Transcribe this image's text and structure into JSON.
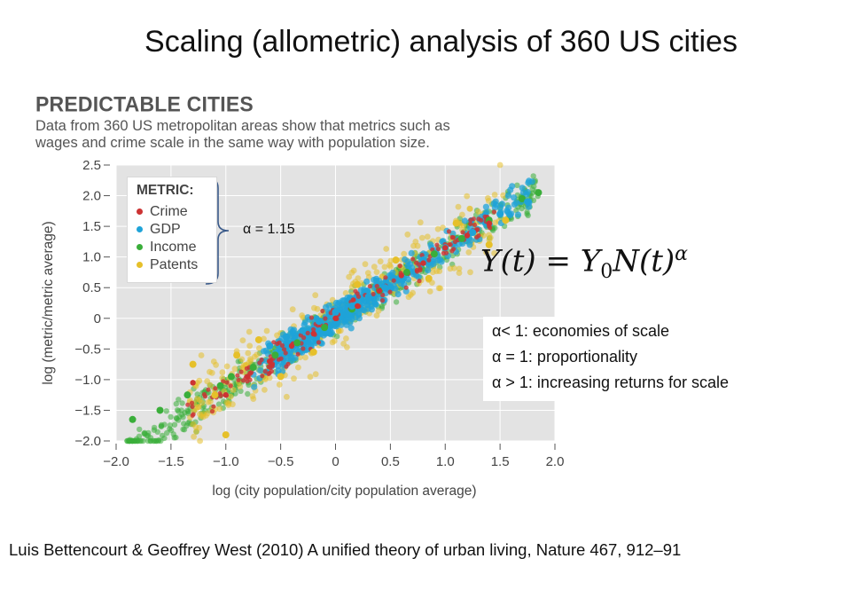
{
  "slide": {
    "title": "Scaling (allometric) analysis of 360 US cities",
    "citation": "Luis Bettencourt & Geoffrey West (2010) A unified theory of urban living, Nature 467, 912–91"
  },
  "annotations": {
    "bracket_label": "α = 1.15",
    "formula": {
      "lhs": "Y(t) = Y",
      "subscript": "0",
      "mid": "N(t)",
      "superscript": "α"
    },
    "regimes": [
      "α< 1: economies of scale",
      "α = 1: proportionality",
      "α > 1: increasing returns for scale"
    ]
  },
  "chart_data": {
    "type": "scatter",
    "title": "PREDICTABLE CITIES",
    "subtitle_lines": [
      "Data from 360 US metropolitan areas show that metrics such as",
      "wages and crime scale in the same way with population size."
    ],
    "xlabel": "log (city population/city population average)",
    "ylabel": "log (metric/metric average)",
    "xlim": [
      -2.0,
      2.0
    ],
    "ylim": [
      -2.0,
      2.5
    ],
    "xticks": [
      -2.0,
      -1.5,
      -1.0,
      -0.5,
      0,
      0.5,
      1.0,
      1.5,
      2.0
    ],
    "xtick_labels": [
      "−2.0",
      "−1.5",
      "−1.0",
      "−0.5",
      "0",
      "0.5",
      "1.0",
      "1.5",
      "2.0"
    ],
    "yticks": [
      2.5,
      2.0,
      1.5,
      1.0,
      0.5,
      0,
      -0.5,
      -1.0,
      -1.5,
      -2.0
    ],
    "ytick_labels": [
      "2.5",
      "2.0",
      "1.5",
      "1.0",
      "0.5",
      "0",
      "−0.5",
      "−1.0",
      "−1.5",
      "−2.0"
    ],
    "grid": true,
    "legend": {
      "title": "METRIC:",
      "position": "top-left"
    },
    "fit": {
      "slope": 1.15,
      "intercept": 0.0
    },
    "colors": {
      "Crime": "#cc3333",
      "GDP": "#1fa3d8",
      "Income": "#3aae3a",
      "Patents": "#e6c02a",
      "grid": "#ffffff",
      "plot_bg": "#e3e3e3"
    },
    "series": [
      {
        "name": "Income",
        "x": [
          -1.85,
          -1.6,
          -1.35,
          -1.05,
          -0.95,
          -0.75,
          -0.55,
          -0.35,
          -0.1,
          0.15,
          0.4,
          0.65,
          0.9,
          1.15,
          1.4,
          1.7,
          1.85
        ],
        "y": [
          -1.65,
          -1.5,
          -1.25,
          -1.1,
          -0.95,
          -0.8,
          -0.6,
          -0.4,
          -0.15,
          0.15,
          0.45,
          0.75,
          1.05,
          1.3,
          1.6,
          1.95,
          2.05
        ]
      },
      {
        "name": "Patents",
        "x": [
          -1.3,
          -1.1,
          -1.0,
          -0.9,
          -0.7,
          -0.5,
          -0.2,
          0.2,
          0.55,
          0.85,
          1.1,
          1.4,
          1.55
        ],
        "y": [
          -0.75,
          -1.25,
          -1.9,
          -0.6,
          -0.35,
          -0.95,
          -0.55,
          0.55,
          0.95,
          0.65,
          1.55,
          1.2,
          1.6
        ]
      },
      {
        "name": "GDP",
        "x": [
          -0.6,
          -0.45,
          -0.3,
          -0.15,
          0.0,
          0.15,
          0.3,
          0.45,
          0.6,
          0.8,
          1.0,
          1.25,
          1.5,
          1.75
        ],
        "y": [
          -0.45,
          -0.3,
          -0.2,
          -0.05,
          0.1,
          0.2,
          0.35,
          0.5,
          0.65,
          0.95,
          1.15,
          1.4,
          1.7,
          1.9
        ]
      },
      {
        "name": "Crime",
        "x": [
          -1.3,
          -1.0,
          -0.8,
          -0.6,
          -0.4,
          -0.2,
          0.0,
          0.2,
          0.4,
          0.6,
          0.8,
          1.0,
          1.2,
          1.4
        ],
        "y": [
          -1.05,
          -1.25,
          -0.95,
          -0.7,
          -0.45,
          -0.25,
          0.0,
          0.2,
          0.45,
          0.7,
          0.9,
          1.15,
          1.35,
          1.55
        ]
      }
    ]
  }
}
